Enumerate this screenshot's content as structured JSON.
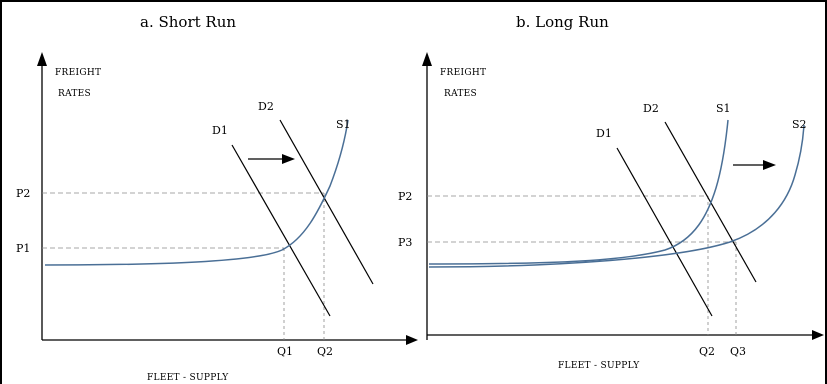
{
  "panel_a": {
    "title": "a. Short Run",
    "y_axis_label": [
      "FREIGHT",
      "RATES"
    ],
    "x_axis_label": "FLEET - SUPPLY",
    "y_ticks": [
      "P2",
      "P1"
    ],
    "x_ticks": [
      "Q1",
      "Q2"
    ],
    "curves": [
      "D1",
      "D2",
      "S1"
    ]
  },
  "panel_b": {
    "title": "b. Long Run",
    "y_axis_label": [
      "FREIGHT",
      "RATES"
    ],
    "x_axis_label": "FLEET - SUPPLY",
    "y_ticks": [
      "P2",
      "P3"
    ],
    "x_ticks": [
      "Q2",
      "Q3"
    ],
    "curves": [
      "D1",
      "D2",
      "S1",
      "S2"
    ]
  },
  "colors": {
    "supply_curve": "#4a6f96",
    "dashed_guide": "#8a8a8a",
    "axis": "#000000"
  },
  "icons": [
    "arrow-right-icon",
    "arrow-right-icon"
  ]
}
